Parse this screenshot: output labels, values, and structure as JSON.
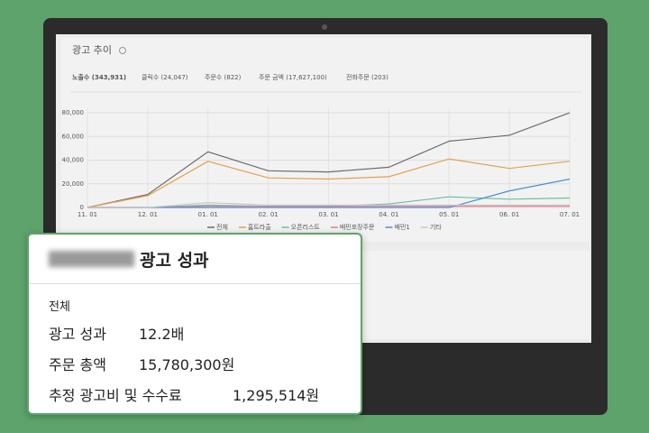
{
  "chart_data": {
    "type": "line",
    "title": "광고 추이",
    "tabs": [
      "노출수 (343,931)",
      "클릭수 (24,047)",
      "주문수 (822)",
      "주문 금액 (17,627,100)",
      "전화주문 (203)"
    ],
    "categories": [
      "11. 01",
      "12. 01",
      "01. 01",
      "02. 01",
      "03. 01",
      "04. 01",
      "05. 01",
      "06. 01",
      "07. 01"
    ],
    "series": [
      {
        "name": "전체",
        "color": "#6b6b6b",
        "values": [
          0,
          11000,
          47000,
          31000,
          30000,
          34000,
          56000,
          61000,
          80000
        ]
      },
      {
        "name": "홈트라출",
        "color": "#e8a04c",
        "values": [
          0,
          10000,
          39000,
          25000,
          24000,
          26000,
          41000,
          33000,
          39000
        ]
      },
      {
        "name": "오픈리스트",
        "color": "#6cbf9a",
        "values": [
          0,
          0,
          2000,
          1000,
          1000,
          3000,
          9000,
          7000,
          8000
        ]
      },
      {
        "name": "배민포장주문",
        "color": "#e87a8a",
        "values": [
          0,
          0,
          1000,
          1000,
          1000,
          1000,
          1000,
          1000,
          1000
        ]
      },
      {
        "name": "배민1",
        "color": "#4a90d9",
        "values": [
          0,
          0,
          0,
          0,
          0,
          0,
          0,
          14000,
          24000
        ]
      },
      {
        "name": "기타",
        "color": "#c8c8c8",
        "values": [
          0,
          0,
          4000,
          2000,
          2000,
          2000,
          2000,
          2000,
          2000
        ]
      }
    ],
    "ylim": [
      0,
      80000
    ],
    "yticks": [
      0,
      {
        "value": 20000,
        "label": "20,000"
      },
      {
        "value": 40000,
        "label": "40,000"
      },
      {
        "value": 60000,
        "label": "60,000"
      },
      {
        "value": 80000,
        "label": "80,000"
      }
    ],
    "grid": true
  },
  "card": {
    "title": "광고 성과",
    "section": "전체",
    "rows": [
      [
        "광고 성과",
        "12.2배"
      ],
      [
        "주문 총액",
        "15,780,300원"
      ],
      [
        "추정 광고비 및 수수료",
        "1,295,514원"
      ]
    ]
  }
}
